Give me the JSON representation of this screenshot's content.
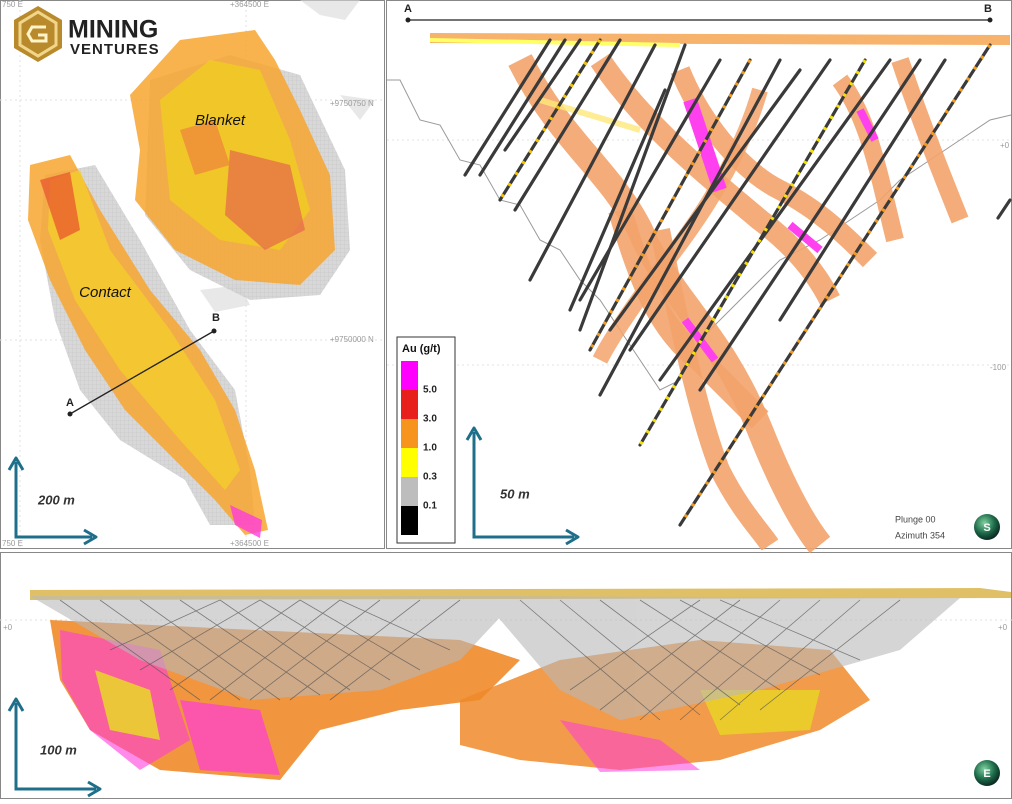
{
  "logo": {
    "line1": "MINING",
    "line2": "VENTURES"
  },
  "plan_view": {
    "labels": {
      "blanket": "Blanket",
      "contact": "Contact"
    },
    "section_line": {
      "start": "A",
      "end": "B"
    },
    "coordinates": {
      "top_left": "750 E",
      "top_mid": "+364500 E",
      "north_upper": "+9750750 N",
      "north_lower": "+9750000 N",
      "bottom_left": "750 E",
      "bottom_mid": "+364500 E"
    },
    "scale": "200 m"
  },
  "section_view": {
    "ends": {
      "start": "A",
      "end": "B"
    },
    "legend": {
      "title": "Au (g/t)",
      "items": [
        {
          "label": "5.0",
          "color": "#ff00ff"
        },
        {
          "label": "3.0",
          "color": "#e8201c"
        },
        {
          "label": "1.0",
          "color": "#f7941d"
        },
        {
          "label": "0.3",
          "color": "#ffff00"
        },
        {
          "label": "0.1",
          "color": "#bdbdbd"
        }
      ],
      "base_color": "#000000"
    },
    "elevations": {
      "upper": "+0",
      "lower": "-100"
    },
    "scale": "50 m",
    "view": {
      "plunge": "Plunge 00",
      "azimuth": "Azimuth 354",
      "compass": "S"
    }
  },
  "long_section": {
    "elevations": {
      "left": "+0",
      "right": "+0"
    },
    "scale": "100 m",
    "compass": "E"
  }
}
